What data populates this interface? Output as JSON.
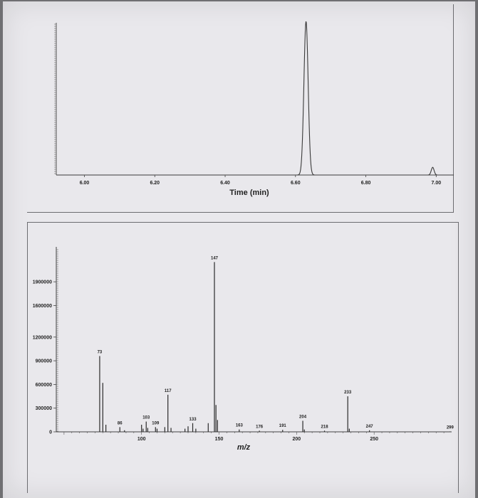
{
  "chart_data": [
    {
      "type": "line",
      "name": "chromatogram",
      "xlabel": "Time (min)",
      "ylabel": "",
      "xlim": [
        5.92,
        7.05
      ],
      "xticks": [
        {
          "value": 6.0,
          "label": "6.00"
        },
        {
          "value": 6.2,
          "label": "6.20"
        },
        {
          "value": 6.4,
          "label": "6.40"
        },
        {
          "value": 6.6,
          "label": "6.60"
        },
        {
          "value": 6.8,
          "label": "6.80"
        },
        {
          "value": 7.0,
          "label": "7.00"
        }
      ],
      "peaks": [
        {
          "x": 6.63,
          "height": 1.0
        },
        {
          "x": 6.99,
          "height": 0.05
        }
      ],
      "grid": false
    },
    {
      "type": "bar",
      "name": "mass spectrum",
      "xlabel": "m/z",
      "ylabel": "",
      "xlim": [
        45,
        300
      ],
      "ylim": [
        0,
        2000000
      ],
      "yticks": [
        {
          "value": 0,
          "label": "0"
        },
        {
          "value": 300000,
          "label": "300000"
        },
        {
          "value": 600000,
          "label": "600000"
        },
        {
          "value": 900000,
          "label": "900000"
        },
        {
          "value": 1200000,
          "label": "1200000"
        },
        {
          "value": 1600000,
          "label": "1600000"
        },
        {
          "value": 1900000,
          "label": "1900000"
        }
      ],
      "xticks": [
        {
          "value": 100,
          "label": "100"
        },
        {
          "value": 150,
          "label": "150"
        },
        {
          "value": 200,
          "label": "200"
        },
        {
          "value": 250,
          "label": "250"
        }
      ],
      "peaks": [
        {
          "mz": 73,
          "intensity": 960000,
          "label": "73"
        },
        {
          "mz": 75,
          "intensity": 620000,
          "label": ""
        },
        {
          "mz": 77,
          "intensity": 90000,
          "label": ""
        },
        {
          "mz": 86,
          "intensity": 60000,
          "label": "86"
        },
        {
          "mz": 89,
          "intensity": 20000,
          "label": ""
        },
        {
          "mz": 100,
          "intensity": 90000,
          "label": ""
        },
        {
          "mz": 101,
          "intensity": 40000,
          "label": ""
        },
        {
          "mz": 103,
          "intensity": 130000,
          "label": "103"
        },
        {
          "mz": 104,
          "intensity": 50000,
          "label": ""
        },
        {
          "mz": 109,
          "intensity": 60000,
          "label": "109"
        },
        {
          "mz": 110,
          "intensity": 40000,
          "label": ""
        },
        {
          "mz": 115,
          "intensity": 60000,
          "label": ""
        },
        {
          "mz": 117,
          "intensity": 470000,
          "label": "117"
        },
        {
          "mz": 119,
          "intensity": 50000,
          "label": ""
        },
        {
          "mz": 128,
          "intensity": 40000,
          "label": ""
        },
        {
          "mz": 130,
          "intensity": 70000,
          "label": ""
        },
        {
          "mz": 133,
          "intensity": 110000,
          "label": "133"
        },
        {
          "mz": 135,
          "intensity": 40000,
          "label": ""
        },
        {
          "mz": 143,
          "intensity": 110000,
          "label": ""
        },
        {
          "mz": 147,
          "intensity": 2150000,
          "label": "147"
        },
        {
          "mz": 148,
          "intensity": 340000,
          "label": ""
        },
        {
          "mz": 149,
          "intensity": 150000,
          "label": ""
        },
        {
          "mz": 163,
          "intensity": 30000,
          "label": "163"
        },
        {
          "mz": 176,
          "intensity": 15000,
          "label": "176"
        },
        {
          "mz": 191,
          "intensity": 25000,
          "label": "191"
        },
        {
          "mz": 204,
          "intensity": 140000,
          "label": "204"
        },
        {
          "mz": 205,
          "intensity": 30000,
          "label": ""
        },
        {
          "mz": 218,
          "intensity": 15000,
          "label": "218"
        },
        {
          "mz": 233,
          "intensity": 450000,
          "label": "233"
        },
        {
          "mz": 234,
          "intensity": 40000,
          "label": ""
        },
        {
          "mz": 247,
          "intensity": 20000,
          "label": "247"
        },
        {
          "mz": 299,
          "intensity": 5000,
          "label": "299"
        }
      ],
      "grid": false
    }
  ]
}
